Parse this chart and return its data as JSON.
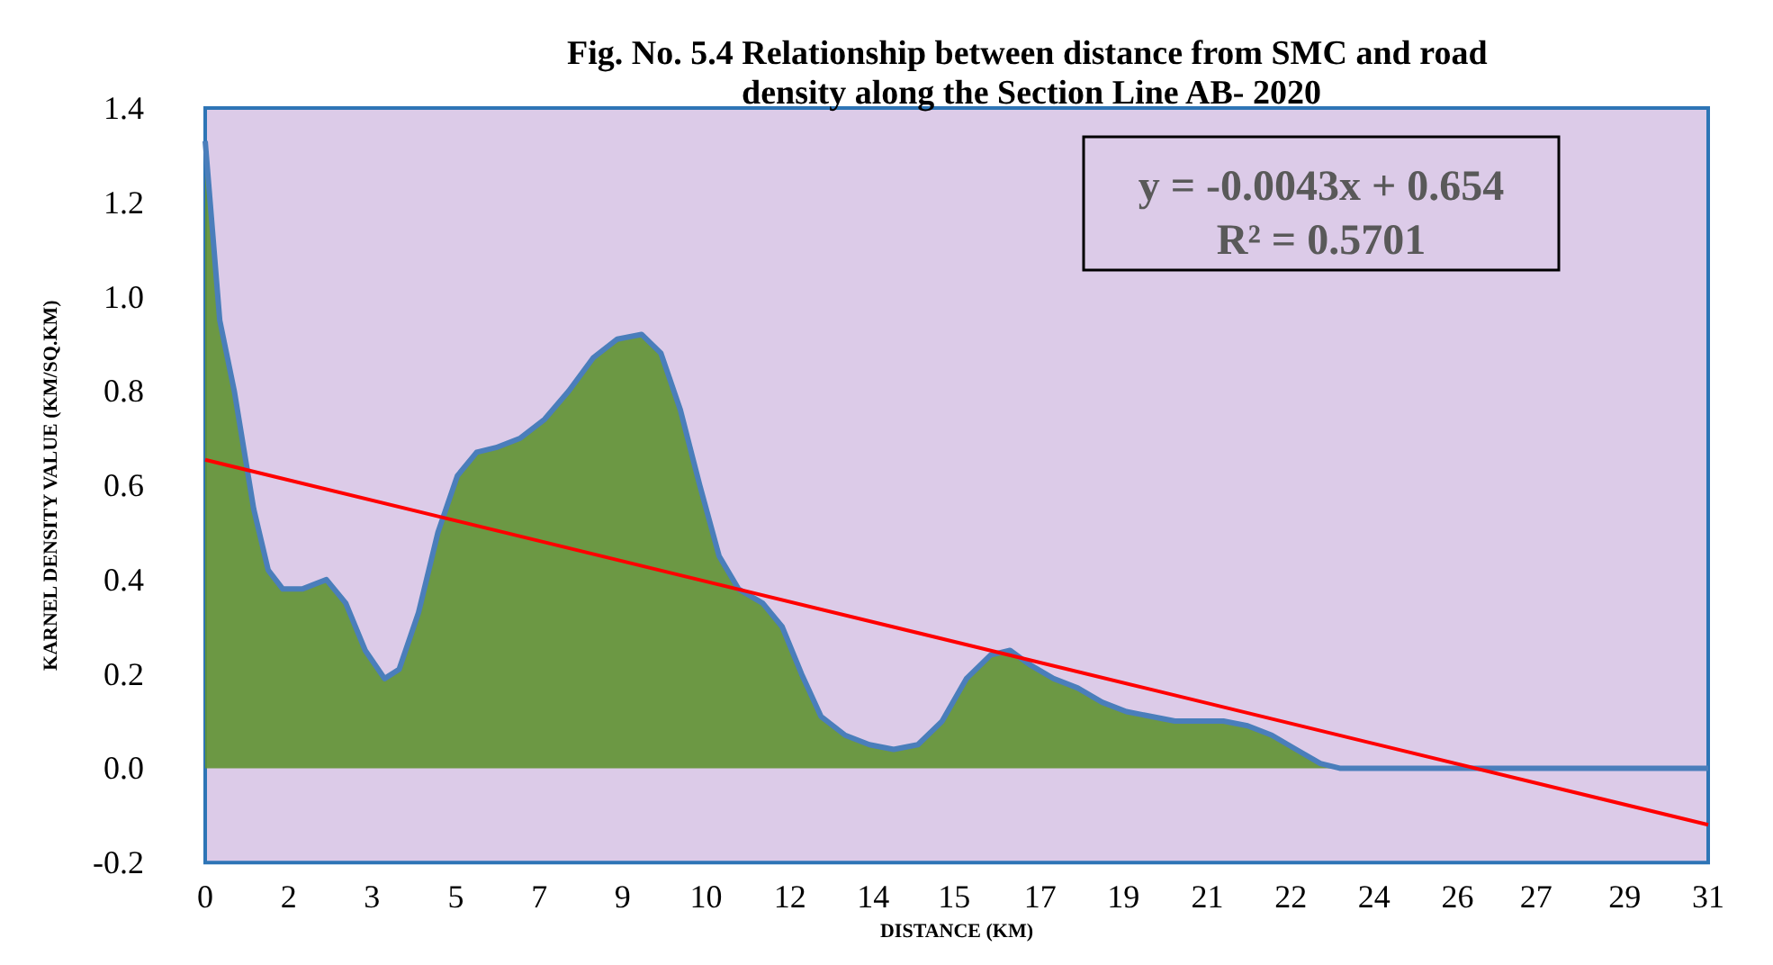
{
  "chart_data": {
    "type": "area",
    "title": "Fig. No. 5.4 Relationship between distance from SMC and road density along the Section Line AB- 2020",
    "xlabel": "DISTANCE (KM)",
    "ylabel": "KARNEL DENSITY VALUE (KM/SQ.KM)",
    "annotations": [
      "y = -0.0043x + 0.654",
      "R² = 0.5701"
    ],
    "x": [
      0,
      0.3,
      0.6,
      1.0,
      1.3,
      1.6,
      2.0,
      2.5,
      2.9,
      3.3,
      3.7,
      4.0,
      4.4,
      4.8,
      5.2,
      5.6,
      6.0,
      6.5,
      7.0,
      7.5,
      8.0,
      8.5,
      9.0,
      9.4,
      9.8,
      10.2,
      10.6,
      11.0,
      11.5,
      11.9,
      12.3,
      12.7,
      13.2,
      13.7,
      14.2,
      14.7,
      15.2,
      15.7,
      16.2,
      16.6,
      17.0,
      17.5,
      18.0,
      18.5,
      19.0,
      19.5,
      20.0,
      20.5,
      21.0,
      21.5,
      22.0,
      22.5,
      23.0,
      23.4,
      25,
      27,
      29,
      31
    ],
    "series": [
      {
        "color": "#5f9232",
        "values": [
          1.33,
          0.95,
          0.8,
          0.55,
          0.42,
          0.38,
          0.38,
          0.4,
          0.35,
          0.25,
          0.19,
          0.21,
          0.33,
          0.5,
          0.62,
          0.67,
          0.68,
          0.7,
          0.74,
          0.8,
          0.87,
          0.91,
          0.92,
          0.88,
          0.76,
          0.6,
          0.45,
          0.38,
          0.35,
          0.3,
          0.2,
          0.11,
          0.07,
          0.05,
          0.04,
          0.05,
          0.1,
          0.19,
          0.24,
          0.25,
          0.22,
          0.19,
          0.17,
          0.14,
          0.12,
          0.11,
          0.1,
          0.1,
          0.1,
          0.09,
          0.07,
          0.04,
          0.01,
          0,
          0,
          0,
          0,
          0
        ]
      },
      {
        "type": "line",
        "color": "#ff0000",
        "x": [
          0,
          31
        ],
        "values": [
          0.654,
          -0.12
        ]
      }
    ],
    "xlim": [
      0,
      31
    ],
    "xticks": [
      0,
      {
        "value": 1.72,
        "label": "2"
      },
      {
        "value": 3.44,
        "label": "3"
      },
      {
        "value": 5.17,
        "label": "5"
      },
      {
        "value": 6.89,
        "label": "7"
      },
      {
        "value": 8.61,
        "label": "9"
      },
      {
        "value": 10.33,
        "label": "10"
      },
      {
        "value": 12.06,
        "label": "12"
      },
      {
        "value": 13.78,
        "label": "14"
      },
      {
        "value": 15.45,
        "label": "15"
      },
      {
        "value": 17.22,
        "label": "17"
      },
      {
        "value": 18.94,
        "label": "19"
      },
      {
        "value": 20.67,
        "label": "21"
      },
      {
        "value": 22.39,
        "label": "22"
      },
      {
        "value": 24.11,
        "label": "24"
      },
      {
        "value": 25.83,
        "label": "26"
      },
      {
        "value": 27.45,
        "label": "27"
      },
      {
        "value": 29.28,
        "label": "29"
      },
      31
    ],
    "ylim": [
      -0.2,
      1.4
    ],
    "yticks": [
      {
        "value": -0.2,
        "label": "-0.2"
      },
      {
        "value": 0,
        "label": "0.0"
      },
      {
        "value": 0.2,
        "label": "0.2"
      },
      {
        "value": 0.4,
        "label": "0.4"
      },
      {
        "value": 0.6,
        "label": "0.6"
      },
      {
        "value": 0.8,
        "label": "0.8"
      },
      {
        "value": 1.0,
        "label": "1.0"
      },
      {
        "value": 1.2,
        "label": "1.2"
      },
      {
        "value": 1.4,
        "label": "1.4"
      }
    ],
    "grid": false
  }
}
